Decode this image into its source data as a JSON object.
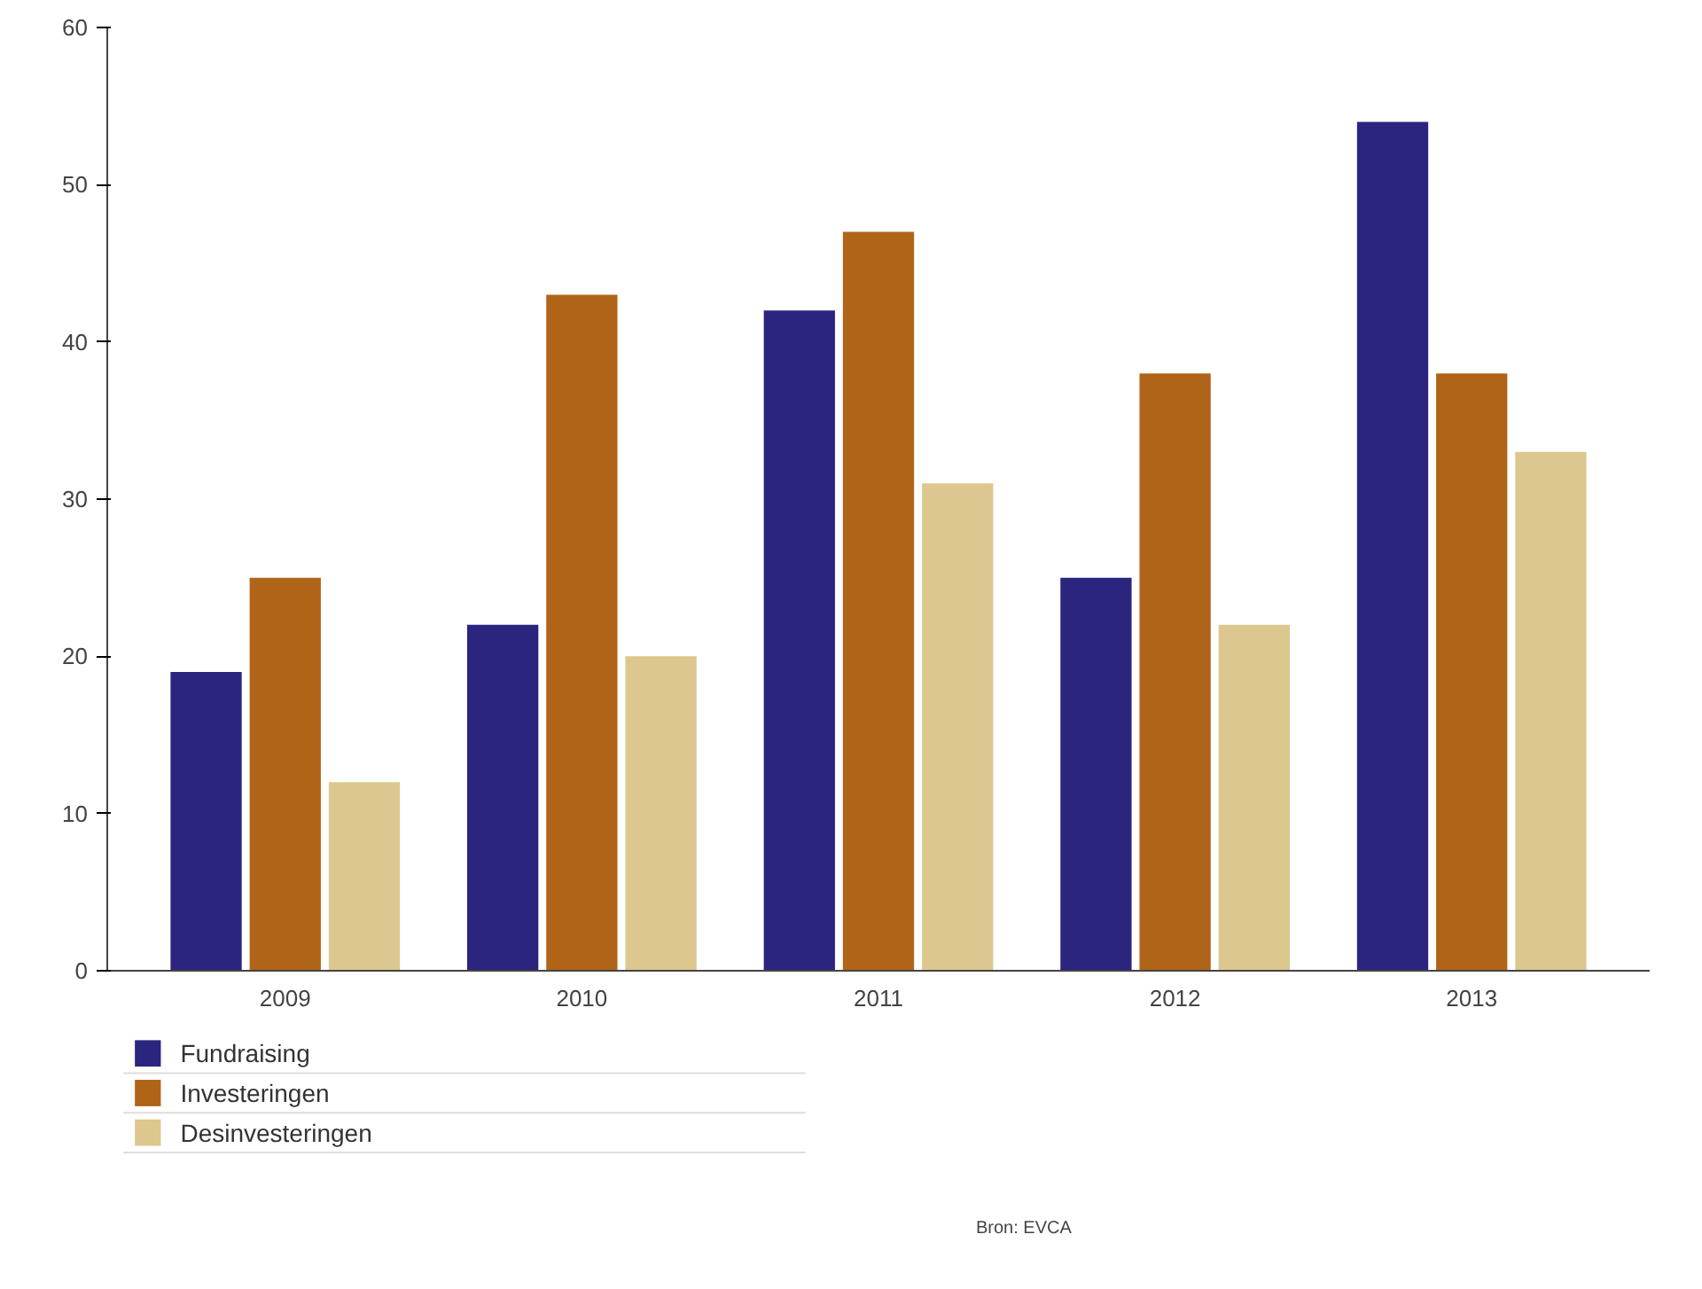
{
  "chart_data": {
    "type": "bar",
    "categories": [
      "2009",
      "2010",
      "2011",
      "2012",
      "2013"
    ],
    "series": [
      {
        "name": "Fundraising",
        "color": "#2b2580",
        "values": [
          19,
          22,
          42,
          25,
          54
        ]
      },
      {
        "name": "Investeringen",
        "color": "#b06418",
        "values": [
          25,
          43,
          47,
          38,
          38
        ]
      },
      {
        "name": "Desinvesteringen",
        "color": "#dcc88e",
        "values": [
          12,
          20,
          31,
          22,
          33
        ]
      }
    ],
    "ylim": [
      0,
      60
    ],
    "yticks": [
      0,
      10,
      20,
      30,
      40,
      50,
      60
    ],
    "grid": false,
    "legend": "bottom",
    "annotations": [
      "Bron: EVCA"
    ]
  }
}
